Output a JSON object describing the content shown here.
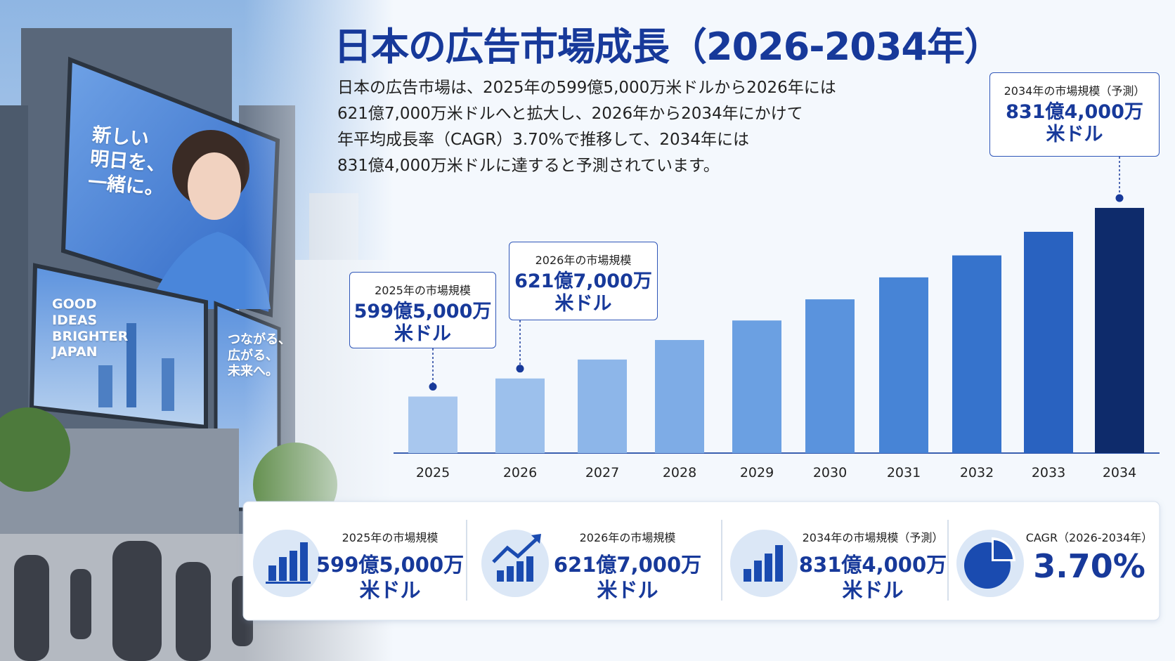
{
  "chart_data": {
    "type": "bar",
    "title": "日本の広告市場成長（2026-2034年）",
    "description": "日本の広告市場は、2025年の599億5,000万米ドルから2026年には\n621億7,000万米ドルへと拡大し、2026年から2034年にかけて\n年平均成長率（CAGR）3.70%で推移して、2034年には\n831億4,000万米ドルに達すると予測されています。",
    "categories": [
      "2025",
      "2026",
      "2027",
      "2028",
      "2029",
      "2030",
      "2031",
      "2032",
      "2033",
      "2034"
    ],
    "values": [
      599.5,
      621.7,
      645,
      669,
      693,
      719,
      746,
      773,
      802,
      831.4
    ],
    "value_labels": [
      "599億5,000万\n米ドル",
      "621億7,000万\n米ドル",
      null,
      null,
      null,
      null,
      null,
      null,
      null,
      "831億4,000万\n米ドル"
    ],
    "label_titles": [
      "2025年の市場規模",
      "2026年の市場規模",
      null,
      null,
      null,
      null,
      null,
      null,
      null,
      "2034年の市場規模（予測）"
    ],
    "colors": [
      "#a8c7ee",
      "#9cc0ec",
      "#8db6e9",
      "#7eace6",
      "#6ba0e2",
      "#5a93dd",
      "#4784d6",
      "#3673cc",
      "#2962c0",
      "#0e2b6b"
    ],
    "ylim": [
      530,
      840
    ],
    "stats": [
      {
        "title": "2025年の市場規模",
        "value": "599億5,000万\n米ドル"
      },
      {
        "title": "2026年の市場規模",
        "value": "621億7,000万\n米ドル"
      },
      {
        "title": "2034年の市場規模（予測）",
        "value": "831億4,000万\n米ドル"
      },
      {
        "title": "CAGR（2026-2034年）",
        "value": "3.70%"
      }
    ],
    "photo": {
      "billboard_1": "新しい\n明日を、\n一緒に。",
      "billboard_2": "GOOD\nIDEAS\nBRIGHTER\nJAPAN",
      "billboard_3": "つながる、\n広がる、\n未来へ。"
    }
  }
}
